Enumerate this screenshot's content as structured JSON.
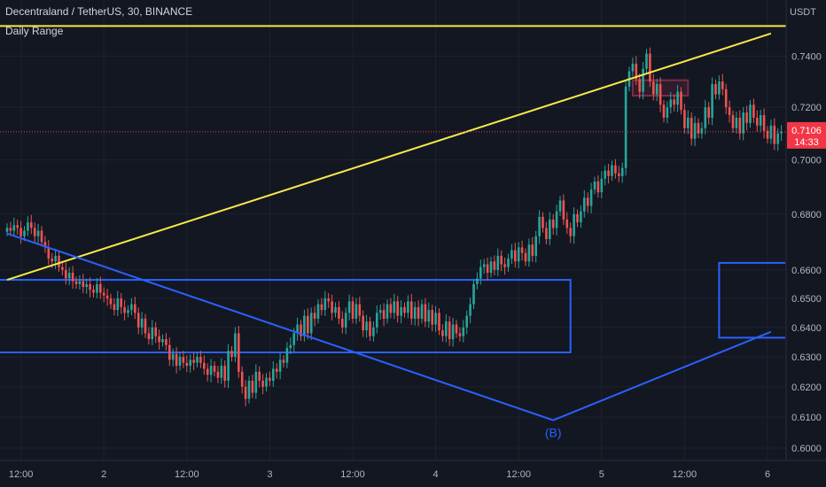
{
  "header": {
    "title": "Decentraland / TetherUS, 30, BINANCE",
    "indicator": "Daily Range"
  },
  "colors": {
    "background": "#131722",
    "grid": "#1e222d",
    "up": "#26a69a",
    "down": "#ef5350",
    "trendline": "#f5e94a",
    "box": "#2962ff",
    "price_tag": "#f23645",
    "resistance_box": "#7b2d48"
  },
  "chart_data": {
    "type": "candlestick",
    "symbol": "Decentraland / TetherUS",
    "interval": "30",
    "exchange": "BINANCE",
    "currency_label": "USDT",
    "last_price": "0.7106",
    "countdown": "14:33",
    "x_ticks": [
      {
        "label": "12:00",
        "i": 4
      },
      {
        "label": "2",
        "i": 28
      },
      {
        "label": "12:00",
        "i": 52
      },
      {
        "label": "3",
        "i": 76
      },
      {
        "label": "12:00",
        "i": 100
      },
      {
        "label": "4",
        "i": 124
      },
      {
        "label": "12:00",
        "i": 148
      },
      {
        "label": "5",
        "i": 172
      },
      {
        "label": "12:00",
        "i": 196
      },
      {
        "label": "6",
        "i": 220
      }
    ],
    "y_ticks": [
      "0.7400",
      "0.7200",
      "0.7000",
      "0.6800",
      "0.6600",
      "0.6500",
      "0.6400",
      "0.6300",
      "0.6200",
      "0.6100",
      "0.6000"
    ],
    "y_range": [
      0.6,
      0.755
    ],
    "scale": "log",
    "grid": true,
    "closes": [
      0.675,
      0.674,
      0.676,
      0.675,
      0.672,
      0.674,
      0.677,
      0.675,
      0.672,
      0.674,
      0.67,
      0.668,
      0.664,
      0.663,
      0.665,
      0.661,
      0.66,
      0.657,
      0.659,
      0.656,
      0.655,
      0.656,
      0.654,
      0.655,
      0.653,
      0.652,
      0.655,
      0.652,
      0.651,
      0.65,
      0.648,
      0.646,
      0.65,
      0.647,
      0.645,
      0.646,
      0.648,
      0.645,
      0.64,
      0.643,
      0.638,
      0.636,
      0.64,
      0.637,
      0.635,
      0.636,
      0.634,
      0.629,
      0.631,
      0.627,
      0.63,
      0.628,
      0.627,
      0.629,
      0.628,
      0.63,
      0.628,
      0.626,
      0.624,
      0.627,
      0.625,
      0.623,
      0.627,
      0.622,
      0.632,
      0.63,
      0.638,
      0.625,
      0.62,
      0.616,
      0.622,
      0.618,
      0.625,
      0.622,
      0.62,
      0.623,
      0.622,
      0.626,
      0.625,
      0.629,
      0.628,
      0.633,
      0.634,
      0.638,
      0.641,
      0.637,
      0.644,
      0.638,
      0.645,
      0.643,
      0.648,
      0.646,
      0.65,
      0.649,
      0.645,
      0.647,
      0.643,
      0.64,
      0.645,
      0.649,
      0.643,
      0.648,
      0.644,
      0.639,
      0.642,
      0.637,
      0.64,
      0.645,
      0.646,
      0.643,
      0.648,
      0.645,
      0.649,
      0.644,
      0.647,
      0.645,
      0.649,
      0.643,
      0.647,
      0.643,
      0.648,
      0.642,
      0.646,
      0.641,
      0.645,
      0.639,
      0.637,
      0.642,
      0.636,
      0.641,
      0.638,
      0.637,
      0.64,
      0.644,
      0.648,
      0.655,
      0.657,
      0.661,
      0.662,
      0.659,
      0.663,
      0.66,
      0.665,
      0.662,
      0.661,
      0.664,
      0.667,
      0.663,
      0.668,
      0.666,
      0.663,
      0.669,
      0.665,
      0.672,
      0.679,
      0.675,
      0.671,
      0.678,
      0.675,
      0.681,
      0.685,
      0.678,
      0.675,
      0.672,
      0.68,
      0.677,
      0.681,
      0.686,
      0.683,
      0.689,
      0.692,
      0.688,
      0.693,
      0.696,
      0.694,
      0.698,
      0.695,
      0.694,
      0.697,
      0.728,
      0.734,
      0.737,
      0.731,
      0.726,
      0.735,
      0.741,
      0.73,
      0.725,
      0.729,
      0.721,
      0.716,
      0.72,
      0.723,
      0.721,
      0.726,
      0.719,
      0.712,
      0.716,
      0.708,
      0.714,
      0.71,
      0.712,
      0.72,
      0.716,
      0.729,
      0.725,
      0.73,
      0.727,
      0.72,
      0.717,
      0.712,
      0.716,
      0.71,
      0.718,
      0.714,
      0.721,
      0.716,
      0.713,
      0.717,
      0.711,
      0.708,
      0.713,
      0.706,
      0.71,
      0.7106
    ],
    "drawings": {
      "horizontal_line": 0.752,
      "rising_trendline": [
        {
          "i": 0,
          "price": 0.6565
        },
        {
          "i": 221,
          "price": 0.749
        }
      ],
      "falling_line": [
        {
          "i": 0,
          "price": 0.673
        },
        {
          "i": 158,
          "price": 0.609
        }
      ],
      "rising_line": [
        {
          "i": 158,
          "price": 0.609
        },
        {
          "i": 221,
          "price": 0.6385
        }
      ],
      "range_box": {
        "i0": 0,
        "i1": 163,
        "top": 0.6565,
        "bottom": 0.6315
      },
      "resistance_box": {
        "i0": 181,
        "i1": 197,
        "top": 0.7305,
        "bottom": 0.7245
      },
      "right_bracket": {
        "i": 206,
        "top": 0.6625,
        "bottom": 0.6365
      },
      "annotation": {
        "text": "(B)",
        "i": 158,
        "price": 0.6035
      }
    }
  }
}
